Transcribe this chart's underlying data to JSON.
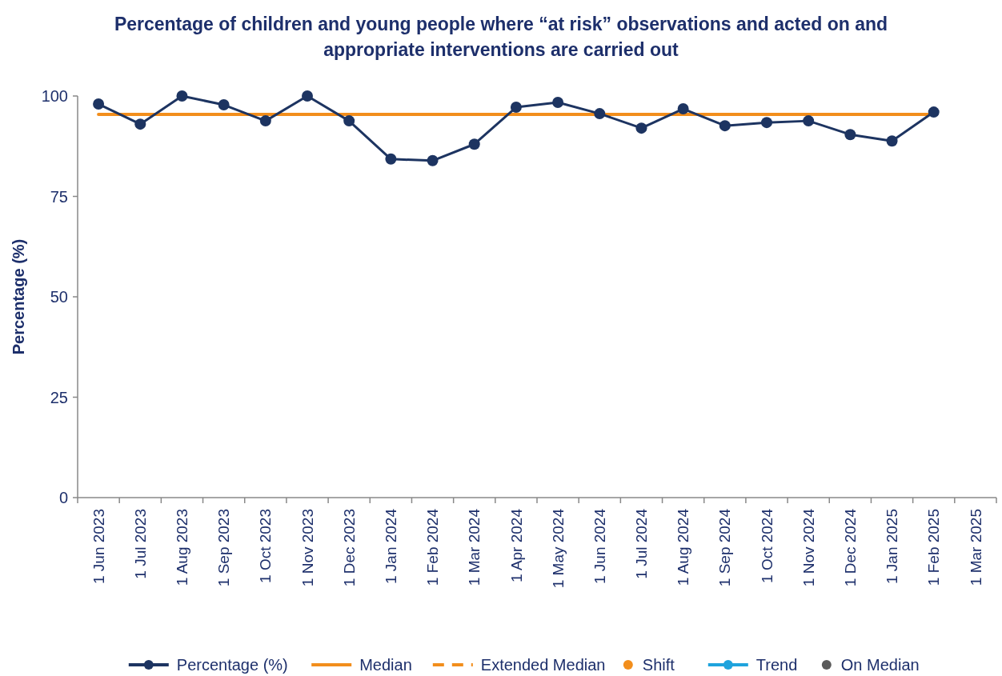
{
  "chart_data": {
    "type": "line",
    "title": "Percentage of children and young people where “at risk” observations and acted on and appropriate interventions are carried out",
    "ylabel": "Percentage (%)",
    "categories": [
      "1 Jun 2023",
      "1 Jul 2023",
      "1 Aug 2023",
      "1 Sep 2023",
      "1 Oct 2023",
      "1 Nov 2023",
      "1 Dec 2023",
      "1 Jan 2024",
      "1 Feb 2024",
      "1 Mar 2024",
      "1 Apr 2024",
      "1 May 2024",
      "1 Jun 2024",
      "1 Jul 2024",
      "1 Aug 2024",
      "1 Sep 2024",
      "1 Oct 2024",
      "1 Nov 2024",
      "1 Dec 2024",
      "1 Jan 2025",
      "1 Feb 2025",
      "1 Mar 2025"
    ],
    "series": [
      {
        "name": "Percentage (%)",
        "color": "#1d3461",
        "marker": "circle",
        "line_style": "solid",
        "values": [
          98,
          93,
          100,
          97.8,
          93.8,
          100,
          93.8,
          84.3,
          83.9,
          88,
          97.2,
          98.4,
          95.6,
          92,
          96.8,
          92.6,
          93.4,
          93.8,
          90.4,
          88.8,
          96,
          null
        ]
      },
      {
        "name": "Median",
        "color": "#f28e1c",
        "marker": "none",
        "line_style": "solid",
        "values": [
          95.4,
          95.4,
          95.4,
          95.4,
          95.4,
          95.4,
          95.4,
          95.4,
          95.4,
          95.4,
          95.4,
          95.4,
          95.4,
          95.4,
          95.4,
          95.4,
          95.4,
          95.4,
          95.4,
          95.4,
          95.4,
          null
        ]
      },
      {
        "name": "Extended Median",
        "type": "line",
        "color": "#f28e1c",
        "marker": "none",
        "line_style": "dashed",
        "values": [
          null,
          null,
          null,
          null,
          null,
          null,
          null,
          null,
          null,
          null,
          null,
          null,
          null,
          null,
          null,
          null,
          null,
          null,
          null,
          null,
          null,
          null
        ]
      },
      {
        "name": "Shift",
        "type": "scatter",
        "color": "#f28e1c",
        "marker": "circle",
        "values": [
          null,
          null,
          null,
          null,
          null,
          null,
          null,
          null,
          null,
          null,
          null,
          null,
          null,
          null,
          null,
          null,
          null,
          null,
          null,
          null,
          null,
          null
        ]
      },
      {
        "name": "Trend",
        "type": "line",
        "color": "#1fa3dd",
        "marker": "circle",
        "line_style": "solid",
        "values": [
          null,
          null,
          null,
          null,
          null,
          null,
          null,
          null,
          null,
          null,
          null,
          null,
          null,
          null,
          null,
          null,
          null,
          null,
          null,
          null,
          null,
          null
        ]
      },
      {
        "name": "On Median",
        "type": "scatter",
        "color": "#5a5a5a",
        "marker": "circle",
        "values": [
          null,
          null,
          null,
          null,
          null,
          null,
          null,
          null,
          null,
          null,
          null,
          null,
          null,
          null,
          null,
          null,
          null,
          null,
          null,
          null,
          null,
          null
        ]
      }
    ],
    "ylim": [
      0,
      100
    ],
    "yticks": [
      0,
      25,
      50,
      75,
      100
    ],
    "grid": false,
    "legend": "bottom"
  }
}
